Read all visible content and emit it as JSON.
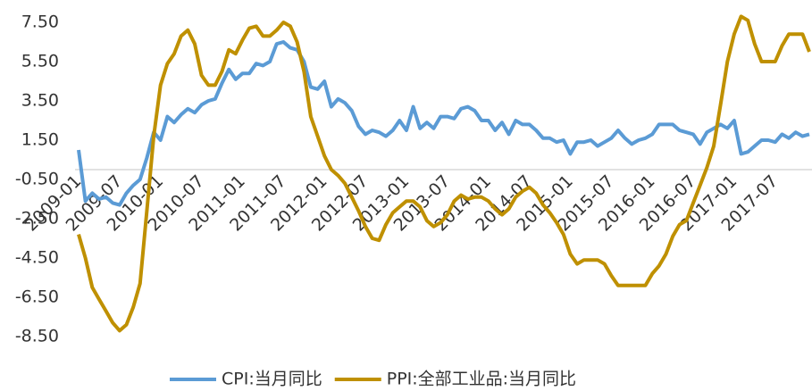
{
  "chart_data": {
    "type": "line",
    "categories": [
      "2009-01",
      null,
      null,
      null,
      null,
      null,
      "2009-07",
      null,
      null,
      null,
      null,
      null,
      "2010-01",
      null,
      null,
      null,
      null,
      null,
      "2010-07",
      null,
      null,
      null,
      null,
      null,
      "2011-01",
      null,
      null,
      null,
      null,
      null,
      "2011-07",
      null,
      null,
      null,
      null,
      null,
      "2012-01",
      null,
      null,
      null,
      null,
      null,
      "2012-07",
      null,
      null,
      null,
      null,
      null,
      "2013-01",
      null,
      null,
      null,
      null,
      null,
      "2013-07",
      null,
      null,
      null,
      null,
      null,
      "2014-01",
      null,
      null,
      null,
      null,
      null,
      "2014-07",
      null,
      null,
      null,
      null,
      null,
      "2015-01",
      null,
      null,
      null,
      null,
      null,
      "2015-07",
      null,
      null,
      null,
      null,
      null,
      "2016-01",
      null,
      null,
      null,
      null,
      null,
      "2016-07",
      null,
      null,
      null,
      null,
      null,
      "2017-01",
      null,
      null,
      null,
      null,
      null,
      "2017-07",
      null,
      null,
      null,
      null,
      null
    ],
    "series": [
      {
        "name": "CPI:当月同比",
        "color": "#5b9bd5",
        "values": [
          1.0,
          -1.6,
          -1.2,
          -1.5,
          -1.4,
          -1.7,
          -1.8,
          -1.2,
          -0.8,
          -0.5,
          0.6,
          1.9,
          1.5,
          2.7,
          2.4,
          2.8,
          3.1,
          2.9,
          3.3,
          3.5,
          3.6,
          4.4,
          5.1,
          4.6,
          4.9,
          4.9,
          5.4,
          5.3,
          5.5,
          6.4,
          6.5,
          6.2,
          6.1,
          5.5,
          4.2,
          4.1,
          4.5,
          3.2,
          3.6,
          3.4,
          3.0,
          2.2,
          1.8,
          2.0,
          1.9,
          1.7,
          2.0,
          2.5,
          2.0,
          3.2,
          2.1,
          2.4,
          2.1,
          2.7,
          2.7,
          2.6,
          3.1,
          3.2,
          3.0,
          2.5,
          2.5,
          2.0,
          2.4,
          1.8,
          2.5,
          2.3,
          2.3,
          2.0,
          1.6,
          1.6,
          1.4,
          1.5,
          0.8,
          1.4,
          1.4,
          1.5,
          1.2,
          1.4,
          1.6,
          2.0,
          1.6,
          1.3,
          1.5,
          1.6,
          1.8,
          2.3,
          2.3,
          2.3,
          2.0,
          1.9,
          1.8,
          1.3,
          1.9,
          2.1,
          2.3,
          2.1,
          2.5,
          0.8,
          0.9,
          1.2,
          1.5,
          1.5,
          1.4,
          1.8,
          1.6,
          1.9,
          1.7,
          1.8
        ]
      },
      {
        "name": "PPI:全部工业品:当月同比",
        "color": "#bf9000",
        "values": [
          -3.3,
          -4.5,
          -6.0,
          -6.6,
          -7.2,
          -7.8,
          -8.2,
          -7.9,
          -7.0,
          -5.8,
          -2.1,
          1.7,
          4.3,
          5.4,
          5.9,
          6.8,
          7.1,
          6.4,
          4.8,
          4.3,
          4.3,
          5.0,
          6.1,
          5.9,
          6.6,
          7.2,
          7.3,
          6.8,
          6.8,
          7.1,
          7.5,
          7.3,
          6.5,
          5.0,
          2.7,
          1.7,
          0.7,
          0.0,
          -0.3,
          -0.7,
          -1.4,
          -2.1,
          -2.9,
          -3.5,
          -3.6,
          -2.8,
          -2.2,
          -1.9,
          -1.6,
          -1.6,
          -1.9,
          -2.6,
          -2.9,
          -2.7,
          -2.3,
          -1.6,
          -1.3,
          -1.5,
          -1.4,
          -1.4,
          -1.6,
          -2.0,
          -2.3,
          -2.0,
          -1.4,
          -1.1,
          -0.9,
          -1.2,
          -1.8,
          -2.2,
          -2.7,
          -3.3,
          -4.3,
          -4.8,
          -4.6,
          -4.6,
          -4.6,
          -4.8,
          -5.4,
          -5.9,
          -5.9,
          -5.9,
          -5.9,
          -5.9,
          -5.3,
          -4.9,
          -4.3,
          -3.4,
          -2.8,
          -2.6,
          -1.7,
          -0.8,
          0.1,
          1.2,
          3.3,
          5.5,
          6.9,
          7.8,
          7.6,
          6.4,
          5.5,
          5.5,
          5.5,
          6.3,
          6.9,
          6.9,
          6.9,
          6.0
        ]
      }
    ],
    "ylim": [
      -8.5,
      7.5
    ],
    "yticks": [
      {
        "value": 7.5,
        "label": "7.50"
      },
      {
        "value": 5.5,
        "label": "5.50"
      },
      {
        "value": 3.5,
        "label": "3.50"
      },
      {
        "value": 1.5,
        "label": "1.50"
      },
      {
        "value": -0.5,
        "label": "-0.50"
      },
      {
        "value": -2.5,
        "label": "-2.50"
      },
      {
        "value": -4.5,
        "label": "-4.50"
      },
      {
        "value": -6.5,
        "label": "-6.50"
      },
      {
        "value": -8.5,
        "label": "-8.50"
      }
    ],
    "grid": false,
    "legend": "bottom"
  }
}
